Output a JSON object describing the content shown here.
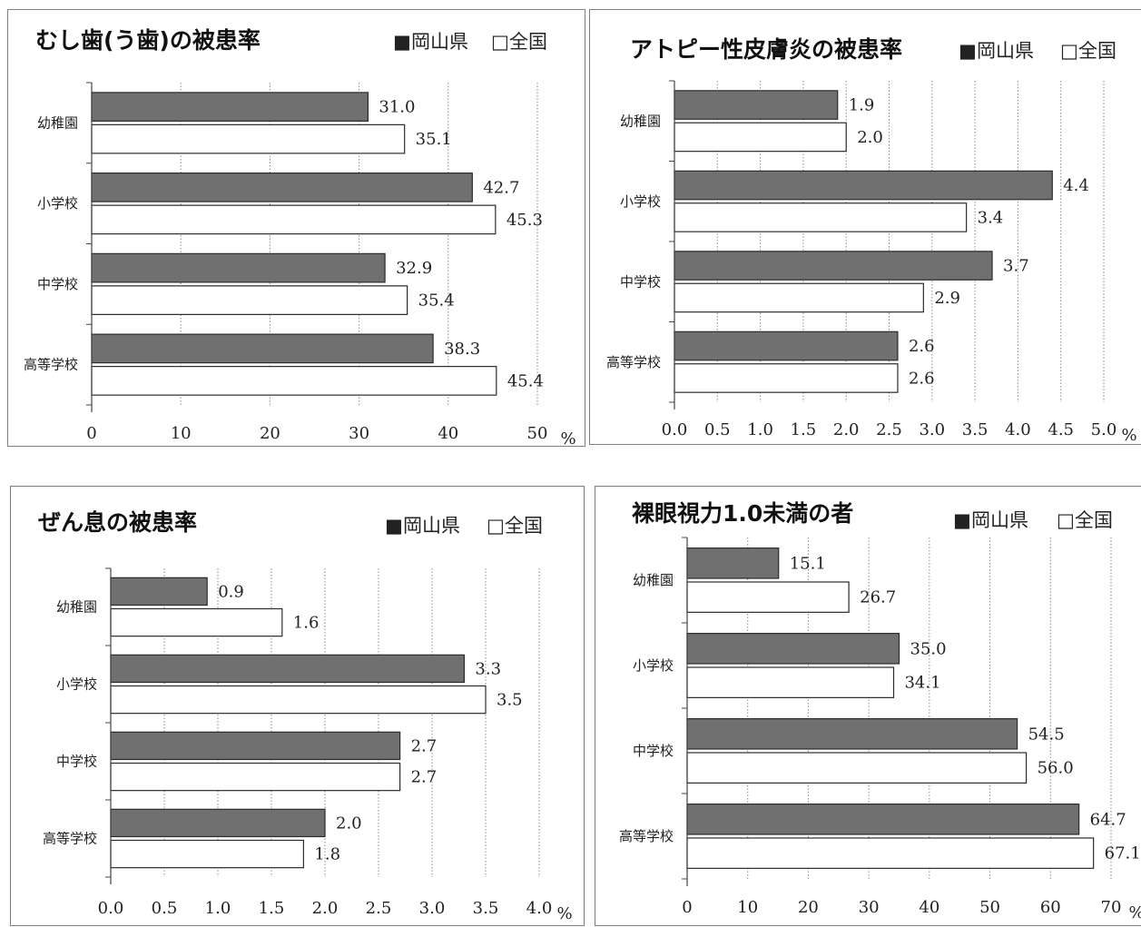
{
  "chart_data": [
    {
      "type": "bar",
      "orientation": "horizontal",
      "title": "むし歯(う歯)の被患率",
      "categories": [
        "幼稚園",
        "小学校",
        "中学校",
        "高等学校"
      ],
      "series": [
        {
          "name": "岡山県",
          "values": [
            31.0,
            42.7,
            32.9,
            38.3
          ],
          "labels": [
            "31.0",
            "42.7",
            "32.9",
            "38.3"
          ],
          "color": "#707070"
        },
        {
          "name": "全国",
          "values": [
            35.1,
            45.3,
            35.4,
            45.4
          ],
          "labels": [
            "35.1",
            "45.3",
            "35.4",
            "45.4"
          ],
          "color": "#ffffff"
        }
      ],
      "xlim": [
        0,
        50
      ],
      "ticks": [
        "0",
        "10",
        "20",
        "30",
        "40",
        "50"
      ],
      "unit": "%",
      "grid": true,
      "legend": "top-right",
      "legend_marks": [
        "■",
        "□"
      ]
    },
    {
      "type": "bar",
      "orientation": "horizontal",
      "title": "アトピー性皮膚炎の被患率",
      "categories": [
        "幼稚園",
        "小学校",
        "中学校",
        "高等学校"
      ],
      "series": [
        {
          "name": "岡山県",
          "values": [
            1.9,
            4.4,
            3.7,
            2.6
          ],
          "labels": [
            "1.9",
            "4.4",
            "3.7",
            "2.6"
          ],
          "color": "#707070"
        },
        {
          "name": "全国",
          "values": [
            2.0,
            3.4,
            2.9,
            2.6
          ],
          "labels": [
            "2.0",
            "3.4",
            "2.9",
            "2.6"
          ],
          "color": "#ffffff"
        }
      ],
      "xlim": [
        0,
        5
      ],
      "ticks": [
        "0.0",
        "0.5",
        "1.0",
        "1.5",
        "2.0",
        "2.5",
        "3.0",
        "3.5",
        "4.0",
        "4.5",
        "5.0"
      ],
      "unit": "%",
      "grid": true,
      "legend": "top-right",
      "legend_marks": [
        "■",
        "□"
      ]
    },
    {
      "type": "bar",
      "orientation": "horizontal",
      "title": "ぜん息の被患率",
      "categories": [
        "幼稚園",
        "小学校",
        "中学校",
        "高等学校"
      ],
      "series": [
        {
          "name": "岡山県",
          "values": [
            0.9,
            3.3,
            2.7,
            2.0
          ],
          "labels": [
            "0.9",
            "3.3",
            "2.7",
            "2.0"
          ],
          "color": "#707070"
        },
        {
          "name": "全国",
          "values": [
            1.6,
            3.5,
            2.7,
            1.8
          ],
          "labels": [
            "1.6",
            "3.5",
            "2.7",
            "1.8"
          ],
          "color": "#ffffff"
        }
      ],
      "xlim": [
        0,
        4
      ],
      "ticks": [
        "0.0",
        "0.5",
        "1.0",
        "1.5",
        "2.0",
        "2.5",
        "3.0",
        "3.5",
        "4.0"
      ],
      "unit": "%",
      "grid": true,
      "legend": "top-right",
      "legend_marks": [
        "■",
        "□"
      ]
    },
    {
      "type": "bar",
      "orientation": "horizontal",
      "title": "裸眼視力1.0未満の者",
      "categories": [
        "幼稚園",
        "小学校",
        "中学校",
        "高等学校"
      ],
      "series": [
        {
          "name": "岡山県",
          "values": [
            15.1,
            35.0,
            54.5,
            64.7
          ],
          "labels": [
            "15.1",
            "35.0",
            "54.5",
            "64.7"
          ],
          "color": "#707070"
        },
        {
          "name": "全国",
          "values": [
            26.7,
            34.1,
            56.0,
            67.1
          ],
          "labels": [
            "26.7",
            "34.1",
            "56.0",
            "67.1"
          ],
          "color": "#ffffff"
        }
      ],
      "xlim": [
        0,
        70
      ],
      "ticks": [
        "0",
        "10",
        "20",
        "30",
        "40",
        "50",
        "60",
        "70"
      ],
      "unit": "%",
      "grid": true,
      "legend": "top-right",
      "legend_marks": [
        "■",
        "□"
      ]
    }
  ]
}
